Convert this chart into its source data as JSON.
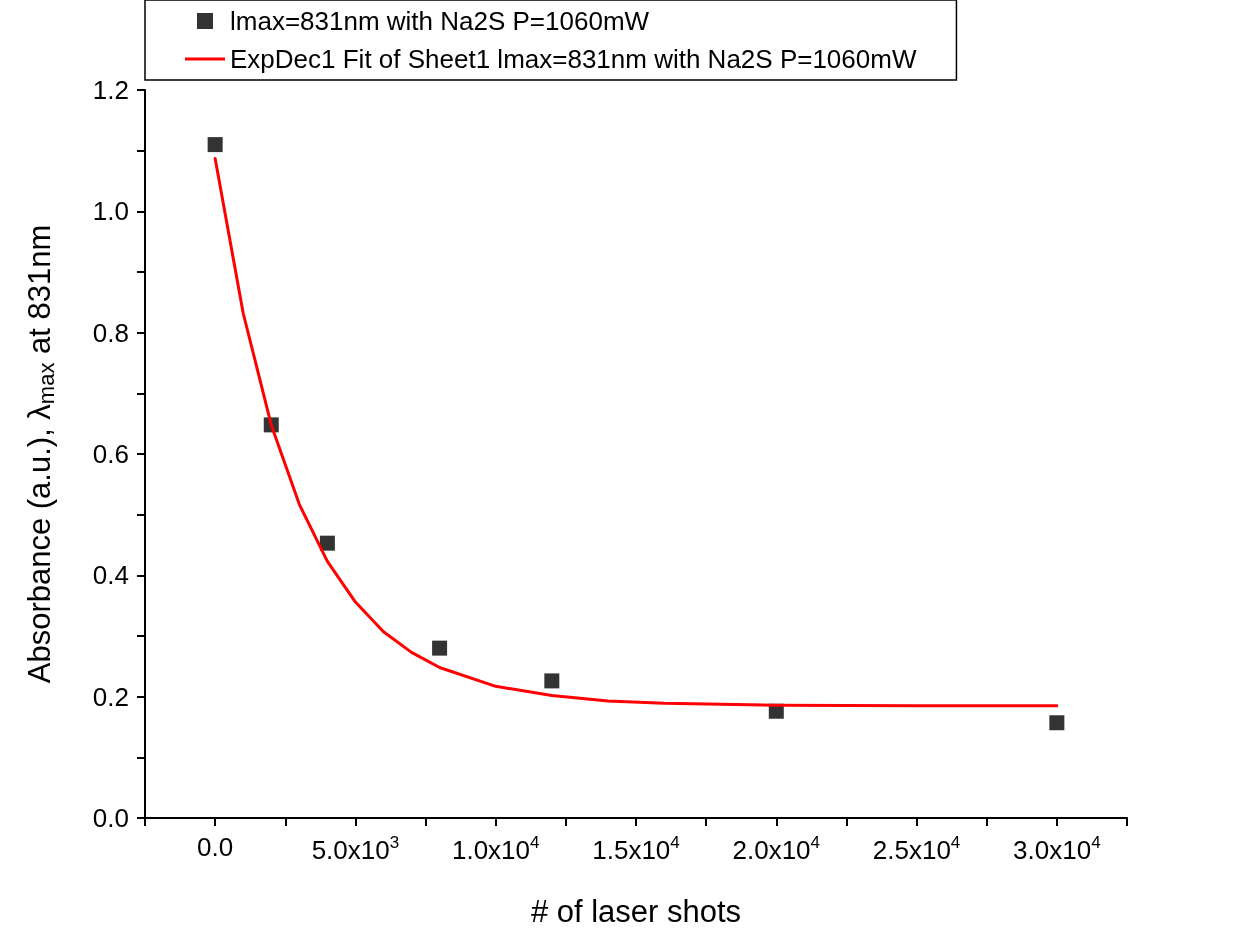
{
  "chart_data": {
    "type": "scatter",
    "xlabel": "# of laser shots",
    "ylabel": "Absorbance (a.u.), λ$_{max}$ at 831nm",
    "xlim": [
      -2500,
      32500
    ],
    "xticks": [
      {
        "value": -2500,
        "label": null
      },
      {
        "value": 0,
        "label": "0.0"
      },
      {
        "value": 2500,
        "label": null
      },
      {
        "value": 5000,
        "label": "5.0x10$^{3}$"
      },
      {
        "value": 7500,
        "label": null
      },
      {
        "value": 10000,
        "label": "1.0x10$^{4}$"
      },
      {
        "value": 12500,
        "label": null
      },
      {
        "value": 15000,
        "label": "1.5x10$^{4}$"
      },
      {
        "value": 17500,
        "label": null
      },
      {
        "value": 20000,
        "label": "2.0x10$^{4}$"
      },
      {
        "value": 22500,
        "label": null
      },
      {
        "value": 25000,
        "label": "2.5x10$^{4}$"
      },
      {
        "value": 27500,
        "label": null
      },
      {
        "value": 30000,
        "label": "3.0x10$^{4}$"
      },
      {
        "value": 32500,
        "label": null
      }
    ],
    "ylim": [
      0,
      1.2
    ],
    "yticks": [
      {
        "value": 0,
        "label": "0.0"
      },
      {
        "value": 0.1,
        "label": null
      },
      {
        "value": 0.2,
        "label": "0.2"
      },
      {
        "value": 0.3,
        "label": null
      },
      {
        "value": 0.4,
        "label": "0.4"
      },
      {
        "value": 0.5,
        "label": null
      },
      {
        "value": 0.6,
        "label": "0.6"
      },
      {
        "value": 0.7,
        "label": null
      },
      {
        "value": 0.8,
        "label": "0.8"
      },
      {
        "value": 0.9,
        "label": null
      },
      {
        "value": 1.0,
        "label": "1.0"
      },
      {
        "value": 1.1,
        "label": null
      },
      {
        "value": 1.2,
        "label": "1.2"
      }
    ],
    "grid": false,
    "legend": "top",
    "series": [
      {
        "name": "lmax=831nm with Na2S P=1060mW",
        "marker": "square",
        "color": "#000000",
        "x": [
          0,
          2000,
          4000,
          8000,
          12000,
          20000,
          30000
        ],
        "values": [
          1.11,
          0.648,
          0.453,
          0.28,
          0.226,
          0.176,
          0.157
        ]
      },
      {
        "name": "ExpDec1 Fit of Sheet1 lmax=831nm with Na2S P=1060mW",
        "type": "line",
        "marker": "none",
        "color": "#ff0000",
        "line_style": "solid",
        "x": [
          0,
          1000,
          2000,
          3000,
          4000,
          5000,
          6000,
          7000,
          8000,
          10000,
          12000,
          14000,
          16000,
          20000,
          25000,
          30000
        ],
        "values": [
          1.087,
          0.832,
          0.648,
          0.517,
          0.423,
          0.356,
          0.307,
          0.273,
          0.248,
          0.217,
          0.202,
          0.193,
          0.189,
          0.186,
          0.185,
          0.185
        ]
      }
    ]
  }
}
